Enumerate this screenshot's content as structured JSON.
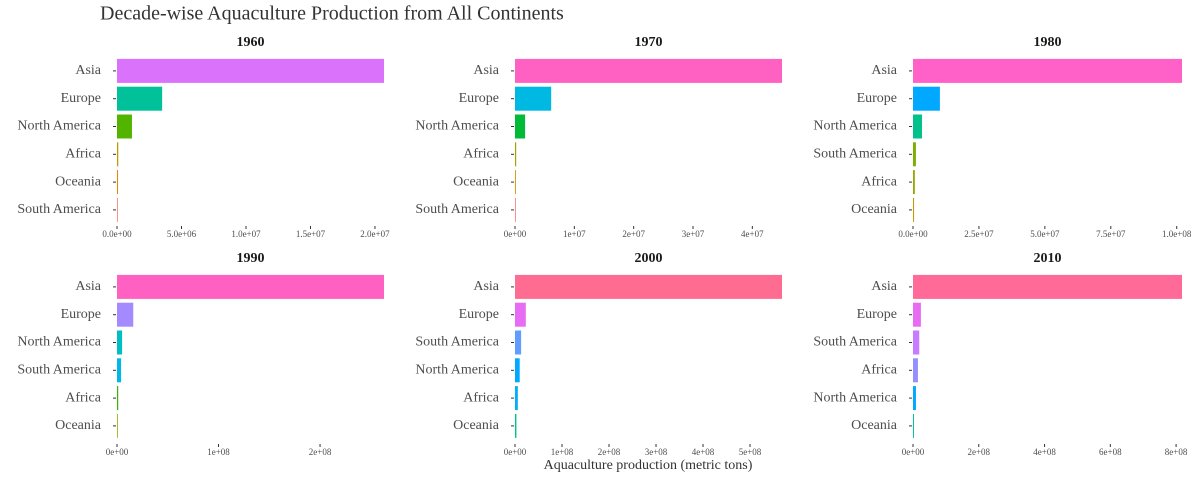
{
  "title": "Decade-wise Aquaculture Production from All Continents",
  "x_label": "Aquaculture production (metric tons)",
  "chart_data": [
    {
      "type": "hbar",
      "title": "1960",
      "categories": [
        "Asia",
        "Europe",
        "North America",
        "Africa",
        "Oceania",
        "South America"
      ],
      "values": [
        20700000,
        3500000,
        1160000,
        100000,
        80000,
        10000
      ],
      "colors": [
        "#db72fb",
        "#00c19a",
        "#53b400",
        "#c49a00",
        "#e58700",
        "#f8766d"
      ],
      "xlim": [
        0,
        20700000
      ],
      "xticks": [
        {
          "value": 0,
          "label": "0.0e+00"
        },
        {
          "value": 5000000,
          "label": "5.0e+06"
        },
        {
          "value": 10000000,
          "label": "1.0e+07"
        },
        {
          "value": 15000000,
          "label": "1.5e+07"
        },
        {
          "value": 20000000,
          "label": "2.0e+07"
        }
      ]
    },
    {
      "type": "hbar",
      "title": "1970",
      "categories": [
        "Asia",
        "Europe",
        "North America",
        "Africa",
        "Oceania",
        "South America"
      ],
      "values": [
        45000000,
        6100000,
        1700000,
        200000,
        150000,
        50000
      ],
      "colors": [
        "#ff61c3",
        "#00b9e3",
        "#00ba38",
        "#a3a500",
        "#d39200",
        "#f8766d"
      ],
      "xlim": [
        0,
        45000000
      ],
      "xticks": [
        {
          "value": 0,
          "label": "0e+00"
        },
        {
          "value": 10000000,
          "label": "1e+07"
        },
        {
          "value": 20000000,
          "label": "2e+07"
        },
        {
          "value": 30000000,
          "label": "3e+07"
        },
        {
          "value": 40000000,
          "label": "4e+07"
        }
      ]
    },
    {
      "type": "hbar",
      "title": "1980",
      "categories": [
        "Asia",
        "Europe",
        "North America",
        "South America",
        "Africa",
        "Oceania"
      ],
      "values": [
        102000000,
        10200000,
        3400000,
        1100000,
        700000,
        400000
      ],
      "colors": [
        "#ff61c9",
        "#00a9ff",
        "#00c08b",
        "#7cae00",
        "#93aa00",
        "#c49a00"
      ],
      "xlim": [
        0,
        102000000
      ],
      "xticks": [
        {
          "value": 0,
          "label": "0.0e+00"
        },
        {
          "value": 25000000,
          "label": "2.5e+07"
        },
        {
          "value": 50000000,
          "label": "5.0e+07"
        },
        {
          "value": 75000000,
          "label": "7.5e+07"
        },
        {
          "value": 100000000,
          "label": "1.0e+08"
        }
      ]
    },
    {
      "type": "hbar",
      "title": "1990",
      "categories": [
        "Asia",
        "Europe",
        "North America",
        "South America",
        "Africa",
        "Oceania"
      ],
      "values": [
        263000000,
        16000000,
        5000000,
        4000000,
        1200000,
        800000
      ],
      "colors": [
        "#ff61c3",
        "#a58aff",
        "#00bfc4",
        "#00b8e7",
        "#39b600",
        "#8fad00"
      ],
      "xlim": [
        0,
        263000000
      ],
      "xticks": [
        {
          "value": 0,
          "label": "0e+00"
        },
        {
          "value": 100000000,
          "label": "1e+08"
        },
        {
          "value": 200000000,
          "label": "2e+08"
        }
      ]
    },
    {
      "type": "hbar",
      "title": "2000",
      "categories": [
        "Asia",
        "Europe",
        "South America",
        "North America",
        "Africa",
        "Oceania"
      ],
      "values": [
        568000000,
        23000000,
        13000000,
        10000000,
        6000000,
        3000000
      ],
      "colors": [
        "#ff6c91",
        "#e76bf3",
        "#619cff",
        "#00a9ff",
        "#00b0f6",
        "#00c08b"
      ],
      "xlim": [
        0,
        568000000
      ],
      "xticks": [
        {
          "value": 0,
          "label": "0e+00"
        },
        {
          "value": 100000000,
          "label": "1e+08"
        },
        {
          "value": 200000000,
          "label": "2e+08"
        },
        {
          "value": 300000000,
          "label": "3e+08"
        },
        {
          "value": 400000000,
          "label": "4e+08"
        },
        {
          "value": 500000000,
          "label": "5e+08"
        }
      ]
    },
    {
      "type": "hbar",
      "title": "2010",
      "categories": [
        "Asia",
        "Europe",
        "South America",
        "Africa",
        "North America",
        "Oceania"
      ],
      "values": [
        818000000,
        24000000,
        19000000,
        15000000,
        9000000,
        3000000
      ],
      "colors": [
        "#ff6a98",
        "#e76bf3",
        "#c77cff",
        "#9590ff",
        "#00a9ff",
        "#00c19f"
      ],
      "xlim": [
        0,
        818000000
      ],
      "xticks": [
        {
          "value": 0,
          "label": "0e+00"
        },
        {
          "value": 200000000,
          "label": "2e+08"
        },
        {
          "value": 400000000,
          "label": "4e+08"
        },
        {
          "value": 600000000,
          "label": "6e+08"
        },
        {
          "value": 800000000,
          "label": "8e+08"
        }
      ]
    }
  ]
}
